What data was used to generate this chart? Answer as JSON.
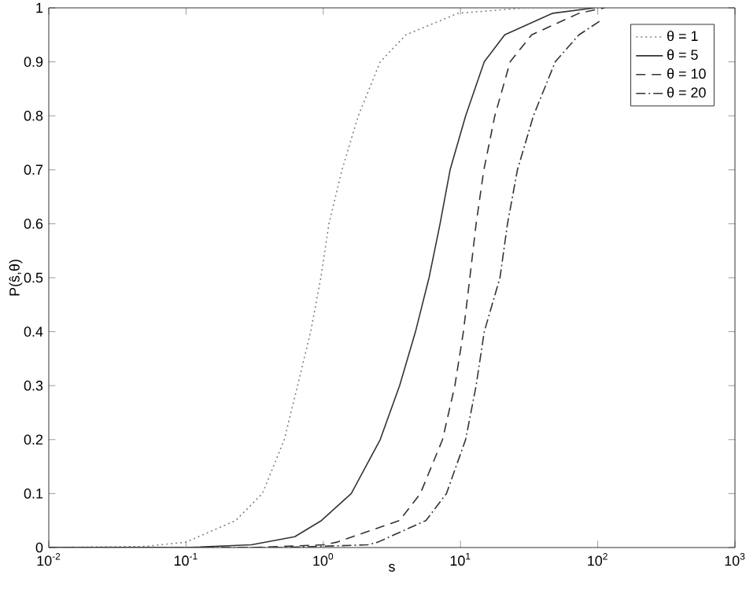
{
  "chart_data": {
    "type": "line",
    "xlabel": "s",
    "ylabel": "P(ŝ,θ)",
    "log": "x",
    "legend": "top right",
    "grid": false,
    "marker": "none",
    "xlim": [
      0.01,
      1000
    ],
    "ylim": [
      0,
      1
    ],
    "xticks": [
      {
        "value": 0.01,
        "label": "10$^{-2}$"
      },
      {
        "value": 0.1,
        "label": "10$^{-1}$"
      },
      {
        "value": 1,
        "label": "10$^{0}$"
      },
      {
        "value": 10,
        "label": "10$^{1}$"
      },
      {
        "value": 100,
        "label": "10$^{2}$"
      },
      {
        "value": 1000,
        "label": "10$^{3}$"
      }
    ],
    "yticks": [
      0,
      0.1,
      0.2,
      0.3,
      0.4,
      0.5,
      0.6,
      0.7,
      0.8,
      0.9,
      1
    ],
    "series": [
      {
        "name": "θ = 1",
        "color": "#808080",
        "line_style": "dotted",
        "x": [
          0.01,
          0.05,
          0.1,
          0.23,
          0.36,
          0.52,
          0.65,
          0.81,
          0.96,
          1.1,
          1.37,
          1.8,
          2.6,
          4,
          9.6,
          30,
          100
        ],
        "values": [
          0,
          0.002,
          0.01,
          0.05,
          0.1,
          0.2,
          0.3,
          0.4,
          0.5,
          0.6,
          0.7,
          0.8,
          0.9,
          0.95,
          0.99,
          1,
          1
        ]
      },
      {
        "name": "θ = 5",
        "color": "#333333",
        "line_style": "solid",
        "x": [
          0.01,
          0.1,
          0.3,
          0.62,
          0.97,
          1.6,
          2.6,
          3.6,
          4.7,
          5.9,
          7.1,
          8.4,
          10.9,
          14.9,
          21,
          47,
          95
        ],
        "values": [
          0,
          0,
          0.005,
          0.02,
          0.05,
          0.1,
          0.2,
          0.3,
          0.4,
          0.5,
          0.6,
          0.7,
          0.8,
          0.9,
          0.95,
          0.99,
          1
        ]
      },
      {
        "name": "θ = 10",
        "color": "#333333",
        "line_style": "dashed",
        "x": [
          0.01,
          0.3,
          1,
          1.26,
          3.6,
          5.1,
          7.4,
          9.1,
          10.5,
          11.7,
          13,
          14.8,
          17.8,
          23,
          33,
          73,
          112
        ],
        "values": [
          0,
          0,
          0.005,
          0.01,
          0.05,
          0.1,
          0.2,
          0.3,
          0.4,
          0.5,
          0.6,
          0.7,
          0.8,
          0.9,
          0.95,
          0.99,
          1
        ]
      },
      {
        "name": "θ = 20",
        "color": "#333333",
        "line_style": "dashdot",
        "x": [
          0.01,
          0.5,
          2.1,
          2.5,
          5.6,
          7.9,
          10.9,
          13,
          14.9,
          19.4,
          22,
          26,
          34,
          49,
          73,
          103
        ],
        "values": [
          0,
          0,
          0.005,
          0.01,
          0.05,
          0.1,
          0.2,
          0.3,
          0.4,
          0.5,
          0.6,
          0.7,
          0.8,
          0.9,
          0.95,
          0.975
        ]
      }
    ]
  }
}
